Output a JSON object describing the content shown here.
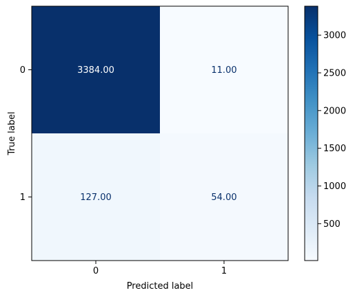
{
  "chart_data": {
    "type": "heatmap",
    "title": "",
    "xlabel": "Predicted label",
    "ylabel": "True label",
    "x_categories": [
      "0",
      "1"
    ],
    "y_categories": [
      "0",
      "1"
    ],
    "values": [
      [
        3384,
        11
      ],
      [
        127,
        54
      ]
    ],
    "cell_labels": [
      [
        "3384.00",
        "11.00"
      ],
      [
        "127.00",
        "54.00"
      ]
    ],
    "colormap": "Blues",
    "colorbar": {
      "range": [
        11,
        3384
      ],
      "ticks": [
        500,
        1000,
        1500,
        2000,
        2500,
        3000
      ],
      "tick_labels": [
        "500",
        "1000",
        "1500",
        "2000",
        "2500",
        "3000"
      ]
    },
    "colors": {
      "min": "#f7fbff",
      "max": "#08306b",
      "text_dark": "#08306b",
      "text_light": "#ffffff"
    }
  }
}
